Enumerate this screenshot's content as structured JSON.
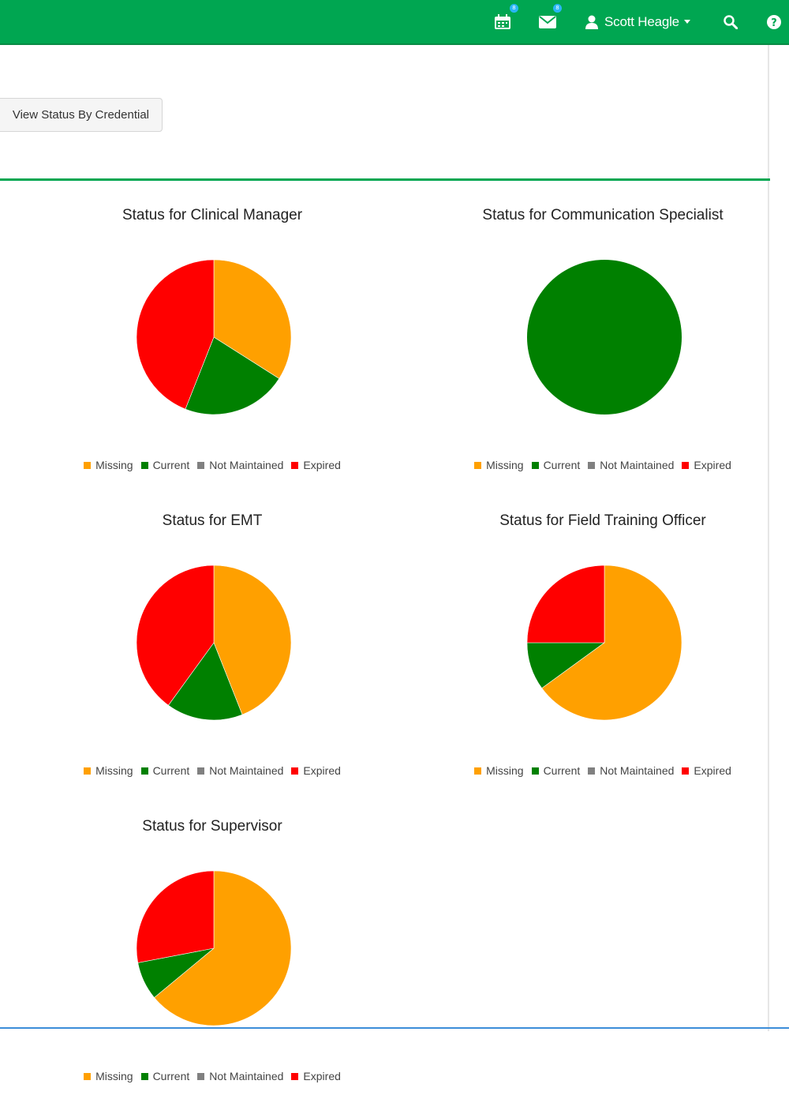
{
  "header": {
    "user_name": "Scott Heagle",
    "calendar_badge": "8",
    "mail_badge": "8",
    "icons": [
      "calendar-icon",
      "mail-icon",
      "user-icon",
      "search-icon",
      "help-icon"
    ]
  },
  "toolbar": {
    "view_status_label": "View Status By Credential"
  },
  "colors": {
    "brand": "#00a651",
    "missing": "#ffa000",
    "current": "#008000",
    "not_maintained": "#808080",
    "expired": "#ff0000"
  },
  "legend": [
    "Missing",
    "Current",
    "Not Maintained",
    "Expired"
  ],
  "chart_data": [
    {
      "type": "pie",
      "title": "Status for Clinical Manager",
      "labels": [
        "Missing",
        "Current",
        "Not Maintained",
        "Expired"
      ],
      "values": [
        34,
        22,
        0,
        44
      ]
    },
    {
      "type": "pie",
      "title": "Status for Communication Specialist",
      "labels": [
        "Missing",
        "Current",
        "Not Maintained",
        "Expired"
      ],
      "values": [
        0,
        100,
        0,
        0
      ]
    },
    {
      "type": "pie",
      "title": "Status for EMT",
      "labels": [
        "Missing",
        "Current",
        "Not Maintained",
        "Expired"
      ],
      "values": [
        44,
        16,
        0,
        40
      ]
    },
    {
      "type": "pie",
      "title": "Status for Field Training Officer",
      "labels": [
        "Missing",
        "Current",
        "Not Maintained",
        "Expired"
      ],
      "values": [
        65,
        10,
        0,
        25
      ]
    },
    {
      "type": "pie",
      "title": "Status for Supervisor",
      "labels": [
        "Missing",
        "Current",
        "Not Maintained",
        "Expired"
      ],
      "values": [
        64,
        8,
        0,
        28
      ]
    }
  ]
}
